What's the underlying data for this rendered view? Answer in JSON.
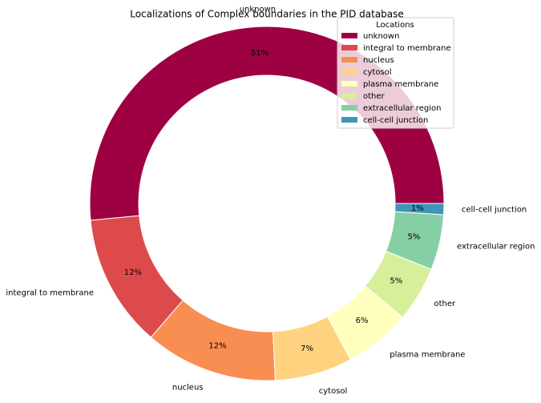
{
  "chart_data": {
    "type": "pie",
    "title": "Localizations of Complex boundaries in the PID database",
    "legend_title": "Locations",
    "legend": "upper right",
    "categories": [
      "unknown",
      "integral to membrane",
      "nucleus",
      "cytosol",
      "plasma membrane",
      "other",
      "extracellular region",
      "cell-cell junction"
    ],
    "values": [
      51,
      12,
      12,
      7,
      6,
      5,
      5,
      1
    ],
    "value_labels": [
      "51%",
      "12%",
      "12%",
      "7%",
      "6%",
      "5%",
      "5%",
      "1%"
    ],
    "colors": [
      "#9e0142",
      "#dd4a4c",
      "#f98e52",
      "#fed27f",
      "#ffffbe",
      "#d7ef9b",
      "#86cfa5",
      "#3d95b8"
    ]
  }
}
